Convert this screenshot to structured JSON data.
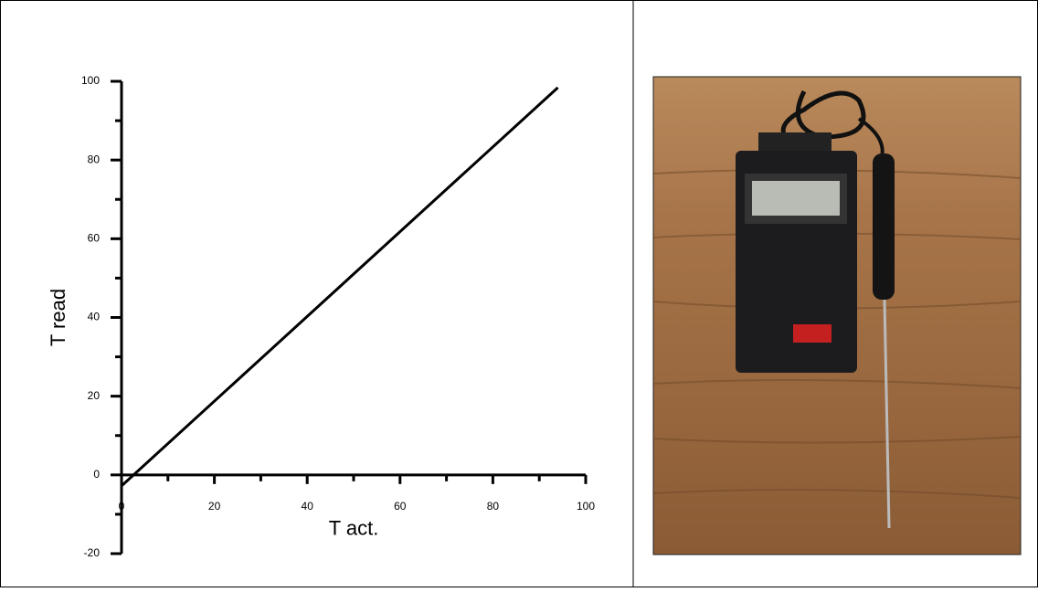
{
  "chart_data": {
    "type": "line",
    "x_label": "T act.",
    "y_label": "T read",
    "x": [
      0,
      94
    ],
    "series": [
      {
        "color": "#000000",
        "values": [
          -2.8,
          98.4
        ]
      }
    ],
    "xlim": [
      0,
      100
    ],
    "ylim": [
      -20,
      100
    ],
    "xticks": [
      0,
      20,
      40,
      60,
      80,
      100
    ],
    "yticks": [
      -20,
      0,
      20,
      40,
      60,
      80,
      100
    ],
    "xminorticks": [
      10,
      30,
      50,
      70,
      90
    ],
    "yminorticks": [
      -10,
      10,
      30,
      50,
      70,
      90
    ],
    "grid": false
  }
}
